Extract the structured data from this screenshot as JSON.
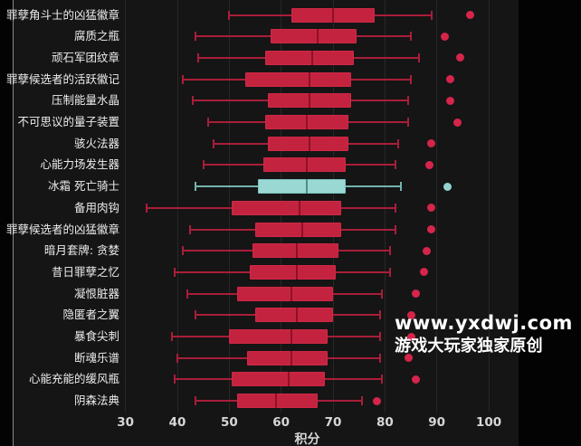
{
  "chart_data": {
    "type": "boxplot",
    "orientation": "horizontal",
    "title": "",
    "xlabel": "积分",
    "x_ticks": [
      30,
      40,
      50,
      60,
      70,
      80,
      90,
      100
    ],
    "xlim": [
      30,
      100
    ],
    "grid": true,
    "legend": null,
    "highlight_label": "冰霜 死亡骑士",
    "series": [
      {
        "label": "罪孽角斗士的凶猛徽章",
        "whisker_low": 50,
        "q1": 62,
        "median": 70,
        "q3": 78,
        "whisker_high": 89,
        "outliers": [
          96.5
        ],
        "highlight": false
      },
      {
        "label": "腐质之瓶",
        "whisker_low": 43.5,
        "q1": 58,
        "median": 67,
        "q3": 74.5,
        "whisker_high": 85,
        "outliers": [
          91.5
        ],
        "highlight": false
      },
      {
        "label": "顽石军团纹章",
        "whisker_low": 44,
        "q1": 57,
        "median": 66,
        "q3": 74,
        "whisker_high": 86.5,
        "outliers": [
          94.5
        ],
        "highlight": false
      },
      {
        "label": "罪孽候选者的活跃徽记",
        "whisker_low": 41,
        "q1": 53,
        "median": 65.5,
        "q3": 73.5,
        "whisker_high": 85,
        "outliers": [
          92.5
        ],
        "highlight": false
      },
      {
        "label": "压制能量水晶",
        "whisker_low": 43,
        "q1": 57.5,
        "median": 65.5,
        "q3": 73.5,
        "whisker_high": 84.5,
        "outliers": [
          92.5
        ],
        "highlight": false
      },
      {
        "label": "不可思议的量子装置",
        "whisker_low": 46,
        "q1": 57,
        "median": 65,
        "q3": 73,
        "whisker_high": 84.5,
        "outliers": [
          94
        ],
        "highlight": false
      },
      {
        "label": "骇火法器",
        "whisker_low": 47,
        "q1": 57.5,
        "median": 65.5,
        "q3": 73,
        "whisker_high": 82.5,
        "outliers": [
          89
        ],
        "highlight": false
      },
      {
        "label": "心能力场发生器",
        "whisker_low": 45,
        "q1": 56.5,
        "median": 65,
        "q3": 72.5,
        "whisker_high": 82,
        "outliers": [
          88.5
        ],
        "highlight": false
      },
      {
        "label": "冰霜 死亡骑士",
        "whisker_low": 43.5,
        "q1": 55.5,
        "median": 65,
        "q3": 72.5,
        "whisker_high": 83,
        "outliers": [
          92
        ],
        "highlight": true
      },
      {
        "label": "备用肉钩",
        "whisker_low": 34,
        "q1": 50.5,
        "median": 63.5,
        "q3": 71.5,
        "whisker_high": 82,
        "outliers": [
          89
        ],
        "highlight": false
      },
      {
        "label": "罪孽候选者的凶猛徽章",
        "whisker_low": 42.5,
        "q1": 55,
        "median": 64,
        "q3": 71.5,
        "whisker_high": 82,
        "outliers": [
          89
        ],
        "highlight": false
      },
      {
        "label": "暗月套牌: 贪婪",
        "whisker_low": 41,
        "q1": 54.5,
        "median": 63,
        "q3": 71,
        "whisker_high": 81,
        "outliers": [
          88
        ],
        "highlight": false
      },
      {
        "label": "昔日罪孽之忆",
        "whisker_low": 39.5,
        "q1": 54,
        "median": 63,
        "q3": 70.5,
        "whisker_high": 81,
        "outliers": [
          87.5
        ],
        "highlight": false
      },
      {
        "label": "凝恨脏器",
        "whisker_low": 42,
        "q1": 51.5,
        "median": 62,
        "q3": 70,
        "whisker_high": 79.5,
        "outliers": [
          86
        ],
        "highlight": false
      },
      {
        "label": "隐匿者之翼",
        "whisker_low": 43.5,
        "q1": 55,
        "median": 63,
        "q3": 70,
        "whisker_high": 79,
        "outliers": [
          85
        ],
        "highlight": false
      },
      {
        "label": "暴食尖刺",
        "whisker_low": 39,
        "q1": 50,
        "median": 62,
        "q3": 69,
        "whisker_high": 79,
        "outliers": [
          85
        ],
        "highlight": false
      },
      {
        "label": "断魂乐谱",
        "whisker_low": 40,
        "q1": 53.5,
        "median": 62,
        "q3": 69,
        "whisker_high": 79,
        "outliers": [
          84.5
        ],
        "highlight": false
      },
      {
        "label": "心能充能的缓风瓶",
        "whisker_low": 39.5,
        "q1": 50.5,
        "median": 61.5,
        "q3": 68.5,
        "whisker_high": 79.5,
        "outliers": [
          86
        ],
        "highlight": false
      },
      {
        "label": "阴森法典",
        "whisker_low": 43.5,
        "q1": 51.5,
        "median": 59,
        "q3": 67,
        "whisker_high": 75.5,
        "outliers": [
          78.5
        ],
        "highlight": false
      }
    ],
    "colors": {
      "background": "#151515",
      "grid": "#272727",
      "label_text": "#ececec",
      "tick_text": "#d6d6d6",
      "box_fill": "#c42340",
      "box_border": "#cf2846",
      "box_median": "#8f1027",
      "whisker": "#a81e39",
      "dot": "#d5254a",
      "highlight_fill": "#9ad8d4",
      "highlight_border": "#7cc3bf",
      "highlight_median": "#4e8d89",
      "highlight_whisker": "#74b3ae",
      "highlight_dot": "#93d3cf"
    }
  },
  "watermark": {
    "line1": "www.yxdwj.com",
    "line2": "游戏大玩家独家原创"
  }
}
